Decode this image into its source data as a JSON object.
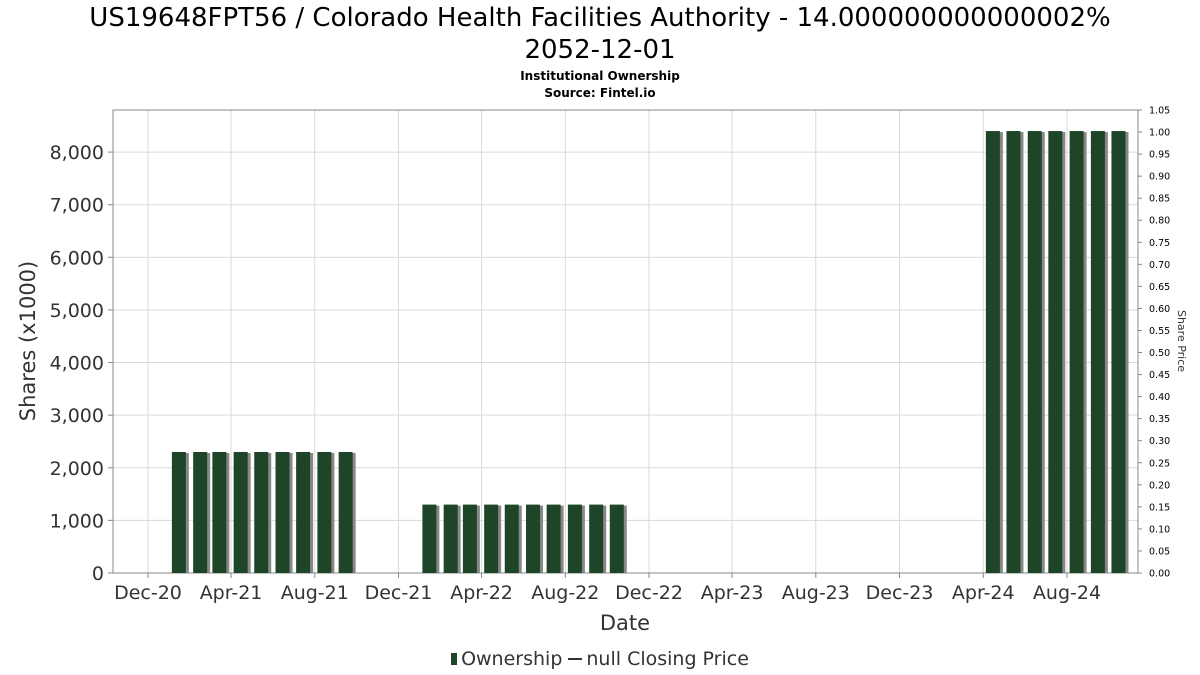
{
  "header": {
    "title_line1": "US19648FPT56 / Colorado Health Facilities Authority - 14.000000000000002%",
    "title_line2": "2052-12-01",
    "subtitle": "Institutional Ownership",
    "source": "Source: Fintel.io"
  },
  "legend": {
    "ownership_label": "Ownership",
    "price_label": "null Closing Price"
  },
  "colors": {
    "bar": "#1f4529",
    "bar_shadow": "#888888",
    "grid": "#d9d9d9",
    "axis": "#888888"
  },
  "chart_data": {
    "type": "bar",
    "title": "US19648FPT56 / Colorado Health Facilities Authority - 14.000000000000002% 2052-12-01",
    "subtitle": "Institutional Ownership",
    "xlabel": "Date",
    "ylabel": "Shares (x1000)",
    "y2label": "Share Price",
    "ylim": [
      0,
      8800
    ],
    "y2lim": [
      0,
      1.05
    ],
    "yticks": [
      "0",
      "1,000",
      "2,000",
      "3,000",
      "4,000",
      "5,000",
      "6,000",
      "7,000",
      "8,000"
    ],
    "y2ticks": [
      "0.00",
      "0.05",
      "0.10",
      "0.15",
      "0.20",
      "0.25",
      "0.30",
      "0.35",
      "0.40",
      "0.45",
      "0.50",
      "0.55",
      "0.60",
      "0.65",
      "0.70",
      "0.75",
      "0.80",
      "0.85",
      "0.90",
      "0.95",
      "1.00",
      "1.05"
    ],
    "xticks": [
      "Dec-20",
      "Apr-21",
      "Aug-21",
      "Dec-21",
      "Apr-22",
      "Aug-22",
      "Dec-22",
      "Apr-23",
      "Aug-23",
      "Dec-23",
      "Apr-24",
      "Aug-24"
    ],
    "grid": true,
    "legend_position": "bottom",
    "series": [
      {
        "name": "Ownership",
        "points": [
          {
            "date": "2021-01-15",
            "value": 2300
          },
          {
            "date": "2021-02-15",
            "value": 2300
          },
          {
            "date": "2021-03-15",
            "value": 2300
          },
          {
            "date": "2021-04-15",
            "value": 2300
          },
          {
            "date": "2021-05-15",
            "value": 2300
          },
          {
            "date": "2021-06-15",
            "value": 2300
          },
          {
            "date": "2021-07-15",
            "value": 2300
          },
          {
            "date": "2021-08-15",
            "value": 2300
          },
          {
            "date": "2021-09-15",
            "value": 2300
          },
          {
            "date": "2022-01-15",
            "value": 1300
          },
          {
            "date": "2022-02-15",
            "value": 1300
          },
          {
            "date": "2022-03-15",
            "value": 1300
          },
          {
            "date": "2022-04-15",
            "value": 1300
          },
          {
            "date": "2022-05-15",
            "value": 1300
          },
          {
            "date": "2022-06-15",
            "value": 1300
          },
          {
            "date": "2022-07-15",
            "value": 1300
          },
          {
            "date": "2022-08-15",
            "value": 1300
          },
          {
            "date": "2022-09-15",
            "value": 1300
          },
          {
            "date": "2022-10-15",
            "value": 1300
          },
          {
            "date": "2024-04-15",
            "value": 8400
          },
          {
            "date": "2024-05-15",
            "value": 8400
          },
          {
            "date": "2024-06-15",
            "value": 8400
          },
          {
            "date": "2024-07-15",
            "value": 8400
          },
          {
            "date": "2024-08-15",
            "value": 8400
          },
          {
            "date": "2024-09-15",
            "value": 8400
          },
          {
            "date": "2024-10-15",
            "value": 8400
          }
        ]
      },
      {
        "name": "null Closing Price",
        "points": []
      }
    ]
  }
}
